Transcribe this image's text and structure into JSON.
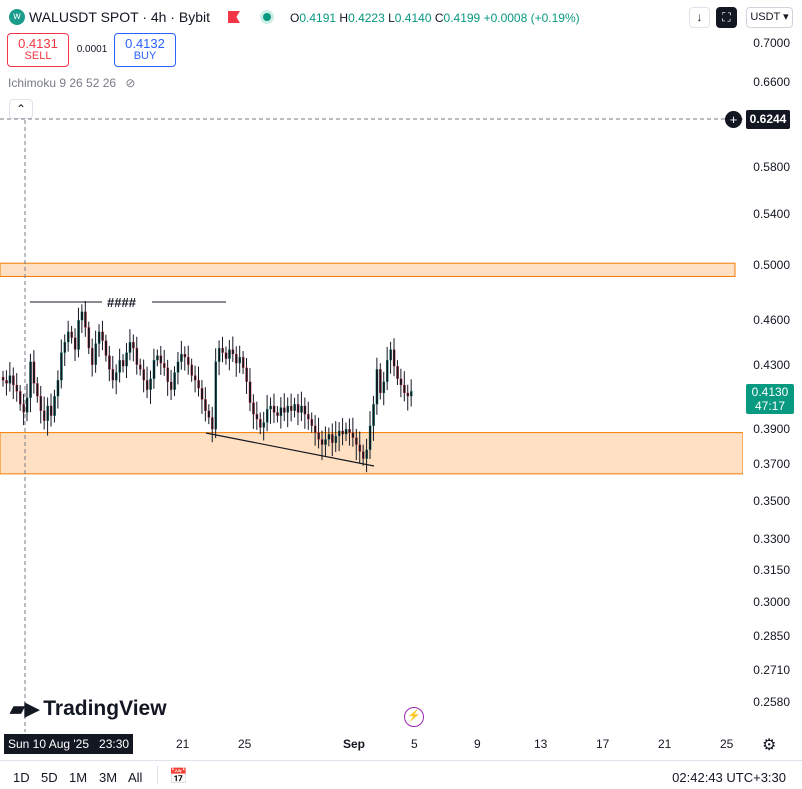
{
  "header": {
    "symbol_title": "WALUSDT SPOT · 4h · Bybit",
    "ohlc_o_label": "O",
    "ohlc_o": "0.4191",
    "ohlc_h_label": "H",
    "ohlc_h": "0.4223",
    "ohlc_l_label": "L",
    "ohlc_l": "0.4140",
    "ohlc_c_label": "C",
    "ohlc_c": "0.4199",
    "change": "+0.0008 (+0.19%)",
    "currency": "USDT",
    "colors": {
      "up": "#089981",
      "down": "#f23645",
      "flag": "#f23645",
      "status": "#089981"
    }
  },
  "trade": {
    "sell_price": "0.4131",
    "sell_label": "SELL",
    "spread": "0.0001",
    "buy_price": "0.4132",
    "buy_label": "BUY"
  },
  "indicator": {
    "label": "Ichimoku 9 26 52 26"
  },
  "price_axis": {
    "ticks": [
      "0.7000",
      "0.6600",
      "0.5800",
      "0.5400",
      "0.5000",
      "0.4600",
      "0.4300",
      "0.3900",
      "0.3700",
      "0.3500",
      "0.3300",
      "0.3150",
      "0.3000",
      "0.2850",
      "0.2710",
      "0.2580"
    ],
    "crosshair_price": "0.6244",
    "last_price": "0.4130",
    "countdown": "47:17"
  },
  "annotation": {
    "text": "####"
  },
  "time_axis": {
    "selected": "Sun 10 Aug '25",
    "selected_time": "23:30",
    "labels": [
      "21",
      "25",
      "Sep",
      "5",
      "9",
      "13",
      "17",
      "21",
      "25"
    ]
  },
  "logo": {
    "text": "TradingView"
  },
  "bottom": {
    "ranges": [
      "1D",
      "5D",
      "1M",
      "3M",
      "All"
    ],
    "clock": "02:42:43 UTC+3:30"
  },
  "chart_data": {
    "type": "candlestick",
    "ylim": [
      0.258,
      0.7
    ],
    "scale": "log",
    "zones": [
      {
        "name": "resistance",
        "from": 0.4915,
        "to": 0.5015,
        "color": "#ffe0c2",
        "border": "#f57c00"
      },
      {
        "name": "support",
        "from": 0.3645,
        "to": 0.388,
        "color": "#ffe0c2",
        "border": "#f57c00"
      }
    ],
    "closes": [
      0.42,
      0.418,
      0.423,
      0.417,
      0.413,
      0.405,
      0.4,
      0.409,
      0.432,
      0.418,
      0.41,
      0.401,
      0.395,
      0.404,
      0.398,
      0.41,
      0.42,
      0.438,
      0.445,
      0.452,
      0.448,
      0.44,
      0.46,
      0.466,
      0.455,
      0.441,
      0.43,
      0.444,
      0.452,
      0.446,
      0.436,
      0.427,
      0.42,
      0.425,
      0.433,
      0.429,
      0.438,
      0.445,
      0.441,
      0.43,
      0.427,
      0.42,
      0.414,
      0.421,
      0.433,
      0.436,
      0.431,
      0.428,
      0.419,
      0.414,
      0.425,
      0.432,
      0.437,
      0.435,
      0.43,
      0.423,
      0.42,
      0.415,
      0.408,
      0.401,
      0.397,
      0.39,
      0.432,
      0.441,
      0.438,
      0.434,
      0.44,
      0.437,
      0.431,
      0.435,
      0.428,
      0.419,
      0.406,
      0.399,
      0.396,
      0.391,
      0.394,
      0.402,
      0.404,
      0.4,
      0.398,
      0.403,
      0.4,
      0.404,
      0.401,
      0.405,
      0.4,
      0.404,
      0.399,
      0.396,
      0.392,
      0.388,
      0.384,
      0.381,
      0.384,
      0.387,
      0.382,
      0.386,
      0.389,
      0.387,
      0.39,
      0.388,
      0.385,
      0.381,
      0.377,
      0.373,
      0.378,
      0.392,
      0.405,
      0.427,
      0.412,
      0.419,
      0.433,
      0.44,
      0.429,
      0.421,
      0.417,
      0.412,
      0.41,
      0.413
    ]
  }
}
